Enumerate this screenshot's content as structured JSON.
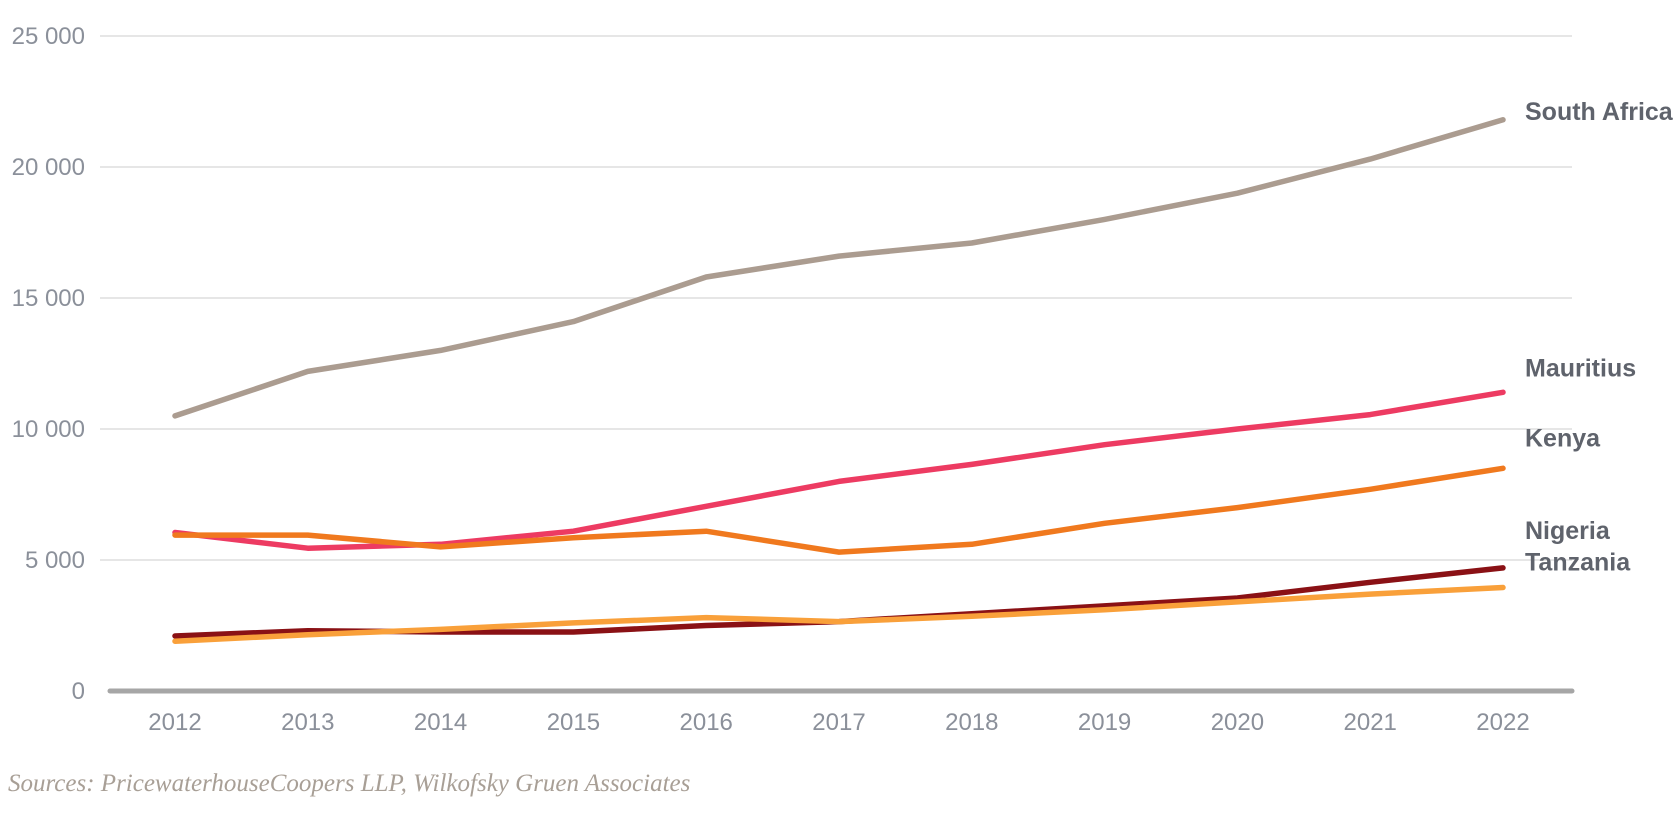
{
  "chart_data": {
    "type": "line",
    "title": "",
    "xlabel": "",
    "ylabel": "",
    "x": [
      2012,
      2013,
      2014,
      2015,
      2016,
      2017,
      2018,
      2019,
      2020,
      2021,
      2022
    ],
    "x_tick_labels": [
      "2012",
      "2013",
      "2014",
      "2015",
      "2016",
      "2017",
      "2018",
      "2019",
      "2020",
      "2021",
      "2022"
    ],
    "ylim": [
      0,
      25000
    ],
    "ytick_step": 5000,
    "y_tick_labels": [
      "0",
      "5 000",
      "10 000",
      "15 000",
      "20 000",
      "25 000"
    ],
    "grid": "horizontal",
    "legend_position": "right-of-line-ends",
    "series": [
      {
        "name": "South Africa",
        "color": "#ab9c90",
        "values": [
          10500,
          12200,
          13000,
          14100,
          15800,
          16600,
          17100,
          18000,
          19000,
          20300,
          21800
        ]
      },
      {
        "name": "Mauritius",
        "color": "#ed3b62",
        "values": [
          6050,
          5450,
          5600,
          6100,
          7050,
          8000,
          8650,
          9400,
          10000,
          10550,
          11400
        ]
      },
      {
        "name": "Kenya",
        "color": "#f0791e",
        "values": [
          5950,
          5950,
          5500,
          5850,
          6100,
          5300,
          5600,
          6400,
          7000,
          7700,
          8500
        ]
      },
      {
        "name": "Nigeria",
        "color": "#8a1115",
        "values": [
          2100,
          2300,
          2250,
          2250,
          2500,
          2650,
          2950,
          3250,
          3550,
          4150,
          4700
        ]
      },
      {
        "name": "Tanzania",
        "color": "#f9a03a",
        "values": [
          1900,
          2150,
          2350,
          2600,
          2800,
          2650,
          2850,
          3100,
          3400,
          3700,
          3950
        ]
      }
    ],
    "colors": {
      "tick_text": "#8b909a",
      "series_label_text": "#5f636c",
      "gridline": "#dddddd",
      "baseline": "#a6a6a6",
      "background": "#ffffff"
    }
  },
  "source_note": "Sources: PricewaterhouseCoopers LLP, Wilkofsky Gruen Associates"
}
